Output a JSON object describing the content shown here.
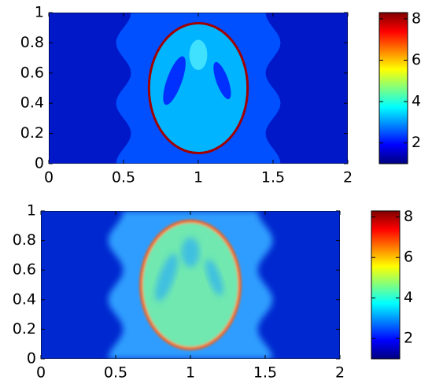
{
  "chart_data": [
    {
      "type": "heatmap",
      "xlim": [
        0,
        2
      ],
      "ylim": [
        0,
        1
      ],
      "xticks": [
        0,
        0.5,
        1,
        1.5,
        2
      ],
      "yticks": [
        0,
        0.2,
        0.4,
        0.6,
        0.8,
        1
      ],
      "clim": [
        1,
        8.3
      ],
      "cticks": [
        2,
        4,
        6,
        8
      ],
      "colormap": "jet"
    },
    {
      "type": "heatmap",
      "xlim": [
        0,
        2
      ],
      "ylim": [
        0,
        1
      ],
      "xticks": [
        0,
        0.5,
        1,
        1.5,
        2
      ],
      "yticks": [
        0,
        0.2,
        0.4,
        0.6,
        0.8,
        1
      ],
      "clim": [
        1,
        8.3
      ],
      "cticks": [
        2,
        4,
        6,
        8
      ],
      "colormap": "jet"
    }
  ]
}
